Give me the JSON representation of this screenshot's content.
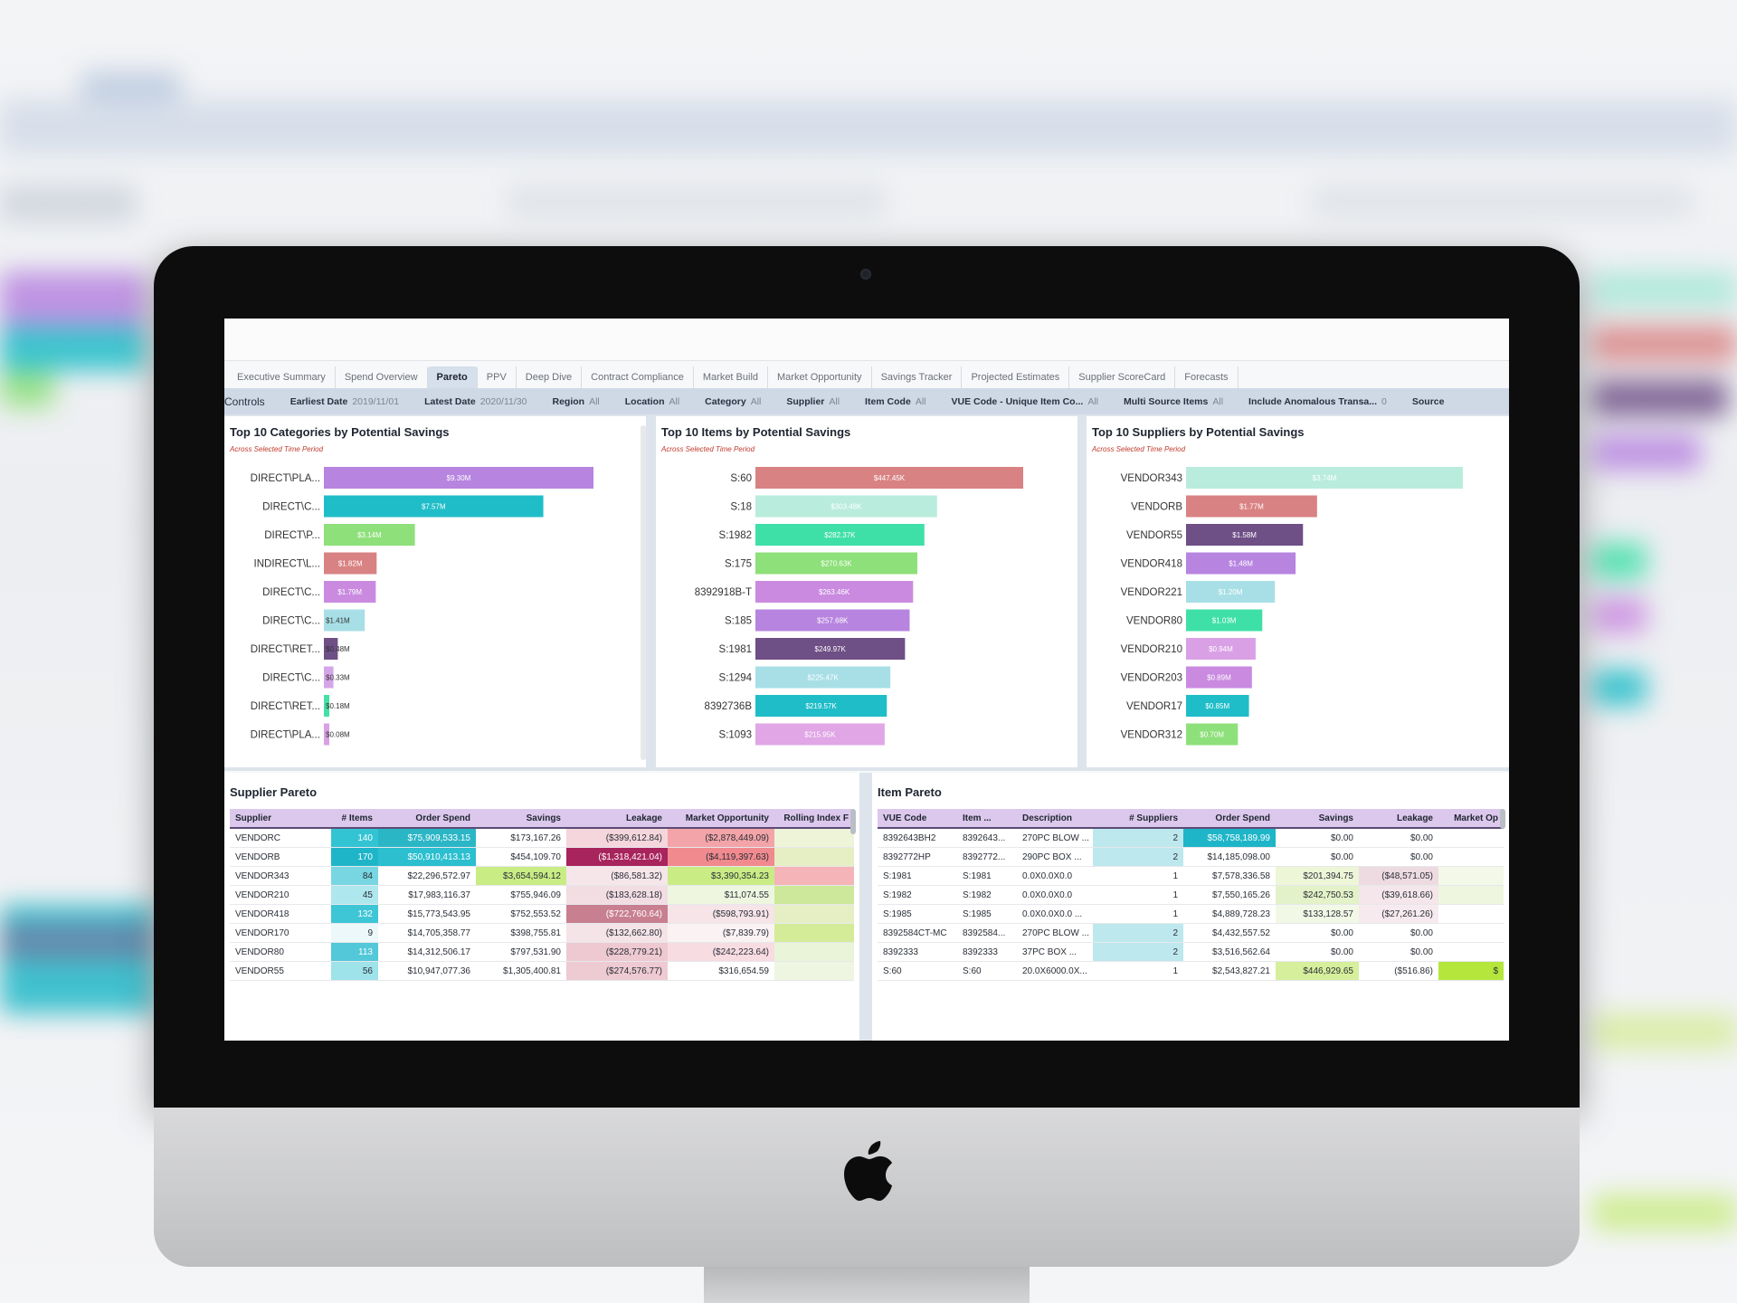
{
  "tabs": [
    {
      "label": "Executive Summary",
      "active": false
    },
    {
      "label": "Spend Overview",
      "active": false
    },
    {
      "label": "Pareto",
      "active": true
    },
    {
      "label": "PPV",
      "active": false
    },
    {
      "label": "Deep Dive",
      "active": false
    },
    {
      "label": "Contract Compliance",
      "active": false
    },
    {
      "label": "Market Build",
      "active": false
    },
    {
      "label": "Market Opportunity",
      "active": false
    },
    {
      "label": "Savings Tracker",
      "active": false
    },
    {
      "label": "Projected Estimates",
      "active": false
    },
    {
      "label": "Supplier ScoreCard",
      "active": false
    },
    {
      "label": "Forecasts",
      "active": false
    }
  ],
  "filters": {
    "controls_label": "Controls",
    "items": [
      {
        "label": "Earliest Date",
        "value": "2019/11/01"
      },
      {
        "label": "Latest Date",
        "value": "2020/11/30"
      },
      {
        "label": "Region",
        "value": "All"
      },
      {
        "label": "Location",
        "value": "All"
      },
      {
        "label": "Category",
        "value": "All"
      },
      {
        "label": "Supplier",
        "value": "All"
      },
      {
        "label": "Item Code",
        "value": "All"
      },
      {
        "label": "VUE Code - Unique Item Co...",
        "value": "All"
      },
      {
        "label": "Multi Source Items",
        "value": "All"
      },
      {
        "label": "Include Anomalous Transa...",
        "value": "0"
      },
      {
        "label": "Source",
        "value": ""
      }
    ]
  },
  "chart_data": [
    {
      "type": "bar",
      "title": "Top 10 Categories by Potential Savings",
      "subtitle": "Across Selected Time Period",
      "categories": [
        "DIRECT\\PLA...",
        "DIRECT\\C...",
        "DIRECT\\P...",
        "INDIRECT\\L...",
        "DIRECT\\C...",
        "DIRECT\\C...",
        "DIRECT\\RET...",
        "DIRECT\\C...",
        "DIRECT\\RET...",
        "DIRECT\\PLA..."
      ],
      "values": [
        9.3,
        7.57,
        3.14,
        1.82,
        1.79,
        1.41,
        0.48,
        0.33,
        0.18,
        0.08
      ],
      "labels": [
        "$9.30M",
        "$7.57M",
        "$3.14M",
        "$1.82M",
        "$1.79M",
        "$1.41M",
        "$0.48M",
        "$0.33M",
        "$0.18M",
        "$0.08M"
      ],
      "colors": [
        "#b784e0",
        "#1fbdc8",
        "#8ee07a",
        "#d98283",
        "#c98ae0",
        "#a8dfe6",
        "#6e4f86",
        "#d4a6e8",
        "#44e0a6",
        "#d9a0e6"
      ],
      "unit": "M"
    },
    {
      "type": "bar",
      "title": "Top 10 Items by Potential Savings",
      "subtitle": "Across Selected Time Period",
      "categories": [
        "S:60",
        "S:18",
        "S:1982",
        "S:175",
        "8392918B-T",
        "S:185",
        "S:1981",
        "S:1294",
        "8392736B",
        "S:1093"
      ],
      "values": [
        447.45,
        303.48,
        282.37,
        270.63,
        263.46,
        257.68,
        249.97,
        225.47,
        219.57,
        215.95
      ],
      "labels": [
        "$447.45K",
        "$303.48K",
        "$282.37K",
        "$270.63K",
        "$263.46K",
        "$257.68K",
        "$249.97K",
        "$225.47K",
        "$219.57K",
        "$215.95K"
      ],
      "colors": [
        "#d98283",
        "#b9ecdc",
        "#3fe0a8",
        "#8ee07a",
        "#c98ae0",
        "#b784e0",
        "#6e4f86",
        "#a8dfe6",
        "#1fbdc8",
        "#e0a6e6"
      ],
      "unit": "K"
    },
    {
      "type": "bar",
      "title": "Top 10 Suppliers by Potential Savings",
      "subtitle": "Across Selected Time Period",
      "categories": [
        "VENDOR343",
        "VENDORB",
        "VENDOR55",
        "VENDOR418",
        "VENDOR221",
        "VENDOR80",
        "VENDOR210",
        "VENDOR203",
        "VENDOR17",
        "VENDOR312"
      ],
      "values": [
        3.74,
        1.77,
        1.58,
        1.48,
        1.2,
        1.03,
        0.94,
        0.89,
        0.85,
        0.7
      ],
      "labels": [
        "$3.74M",
        "$1.77M",
        "$1.58M",
        "$1.48M",
        "$1.20M",
        "$1.03M",
        "$0.94M",
        "$0.89M",
        "$0.85M",
        "$0.70M"
      ],
      "colors": [
        "#b9ecdc",
        "#d98283",
        "#6e4f86",
        "#b784e0",
        "#a8dfe6",
        "#3fe0a8",
        "#d9a0e6",
        "#c98ae0",
        "#1fbdc8",
        "#8ee07a"
      ],
      "unit": "M"
    }
  ],
  "supplier_pareto": {
    "title": "Supplier Pareto",
    "columns": [
      "Supplier",
      "# Items",
      "Order Spend",
      "Savings",
      "Leakage",
      "Market Opportunity",
      "Rolling Index F"
    ],
    "rows": [
      [
        "VENDORC",
        "140",
        "$75,909,533.15",
        "$173,167.26",
        "($399,612.84)",
        "($2,878,449.09)",
        ""
      ],
      [
        "VENDORB",
        "170",
        "$50,910,413.13",
        "$454,109.70",
        "($1,318,421.04)",
        "($4,119,397.63)",
        ""
      ],
      [
        "VENDOR343",
        "84",
        "$22,296,572.97",
        "$3,654,594.12",
        "($86,581.32)",
        "$3,390,354.23",
        ""
      ],
      [
        "VENDOR210",
        "45",
        "$17,983,116.37",
        "$755,946.09",
        "($183,628.18)",
        "$11,074.55",
        ""
      ],
      [
        "VENDOR418",
        "132",
        "$15,773,543.95",
        "$752,553.52",
        "($722,760.64)",
        "($598,793.91)",
        ""
      ],
      [
        "VENDOR170",
        "9",
        "$14,705,358.77",
        "$398,755.81",
        "($132,662.80)",
        "($7,839.79)",
        ""
      ],
      [
        "VENDOR80",
        "113",
        "$14,312,506.17",
        "$797,531.90",
        "($228,779.21)",
        "($242,223.64)",
        ""
      ],
      [
        "VENDOR55",
        "56",
        "$10,947,077.36",
        "$1,305,400.81",
        "($274,576.77)",
        "$316,654.59",
        ""
      ]
    ],
    "cell_colors": [
      [
        "",
        "#33c4d4",
        "#2bb6c6",
        "",
        "#f4d6dc",
        "#f3a4a8",
        "#eef4d8"
      ],
      [
        "",
        "#1fb5c8",
        "#2bbfd0",
        "",
        "#a8245c",
        "#f08a8e",
        "#e6efc4"
      ],
      [
        "",
        "#77d6e2",
        "",
        "#c9ec84",
        "#f6e6ea",
        "#c9ec84",
        "#f4b4b8"
      ],
      [
        "",
        "#aee8ee",
        "",
        "",
        "#f2dde3",
        "#eef6e0",
        "#cde89a"
      ],
      [
        "",
        "#3fc6d6",
        "",
        "",
        "#c88090",
        "#f6e4e8",
        "#e6efc4"
      ],
      [
        "",
        "#ecf8fa",
        "",
        "",
        "#f4e3e7",
        "#fbf2f4",
        "#d4ec98"
      ],
      [
        "",
        "#52c8d8",
        "",
        "",
        "#eec9d2",
        "#f7dce2",
        "#eaf4d8"
      ],
      [
        "",
        "#9ee2ea",
        "",
        "",
        "#eecad2",
        "#ffffff",
        "#eef6e2"
      ]
    ]
  },
  "item_pareto": {
    "title": "Item Pareto",
    "columns": [
      "VUE Code",
      "Item ...",
      "Description",
      "# Suppliers",
      "Order Spend",
      "Savings",
      "Leakage",
      "Market Op"
    ],
    "rows": [
      [
        "8392643BH2",
        "8392643...",
        "270PC BLOW ...",
        "2",
        "$58,758,189.99",
        "$0.00",
        "$0.00",
        ""
      ],
      [
        "8392772HP",
        "8392772...",
        "290PC BOX ...",
        "2",
        "$14,185,098.00",
        "$0.00",
        "$0.00",
        ""
      ],
      [
        "S:1981",
        "S:1981",
        "0.0X0.0X0.0",
        "1",
        "$7,578,336.58",
        "$201,394.75",
        "($48,571.05)",
        ""
      ],
      [
        "S:1982",
        "S:1982",
        "0.0X0.0X0.0",
        "1",
        "$7,550,165.26",
        "$242,750.53",
        "($39,618.66)",
        ""
      ],
      [
        "S:1985",
        "S:1985",
        "0.0X0.0X0.0  ...",
        "1",
        "$4,889,728.23",
        "$133,128.57",
        "($27,261.26)",
        ""
      ],
      [
        "8392584CT-MC",
        "8392584...",
        "270PC BLOW ...",
        "2",
        "$4,432,557.52",
        "$0.00",
        "$0.00",
        ""
      ],
      [
        "8392333",
        "8392333",
        "37PC BOX ...",
        "2",
        "$3,516,562.64",
        "$0.00",
        "$0.00",
        ""
      ],
      [
        "S:60",
        "S:60",
        "20.0X6000.0X...",
        "1",
        "$2,543,827.21",
        "$446,929.65",
        "($516.86)",
        "$"
      ]
    ],
    "cell_colors": [
      [
        "",
        "",
        "",
        "#bde8ee",
        "#1fb5c8",
        "",
        "",
        ""
      ],
      [
        "",
        "",
        "",
        "#bde8ee",
        "",
        "",
        "",
        ""
      ],
      [
        "",
        "",
        "",
        "",
        "",
        "#eef6d8",
        "#eedbe2",
        "#f4f8e8"
      ],
      [
        "",
        "",
        "",
        "",
        "",
        "#e3f2c8",
        "#f4e6ea",
        "#eef6e0"
      ],
      [
        "",
        "",
        "",
        "",
        "",
        "#f2f8e6",
        "#f7eaee",
        ""
      ],
      [
        "",
        "",
        "",
        "#bde8ee",
        "",
        "",
        "",
        ""
      ],
      [
        "",
        "",
        "",
        "#bde8ee",
        "",
        "",
        "",
        ""
      ],
      [
        "",
        "",
        "",
        "",
        "",
        "#d6ef9c",
        "",
        "#b4e63c"
      ]
    ]
  }
}
